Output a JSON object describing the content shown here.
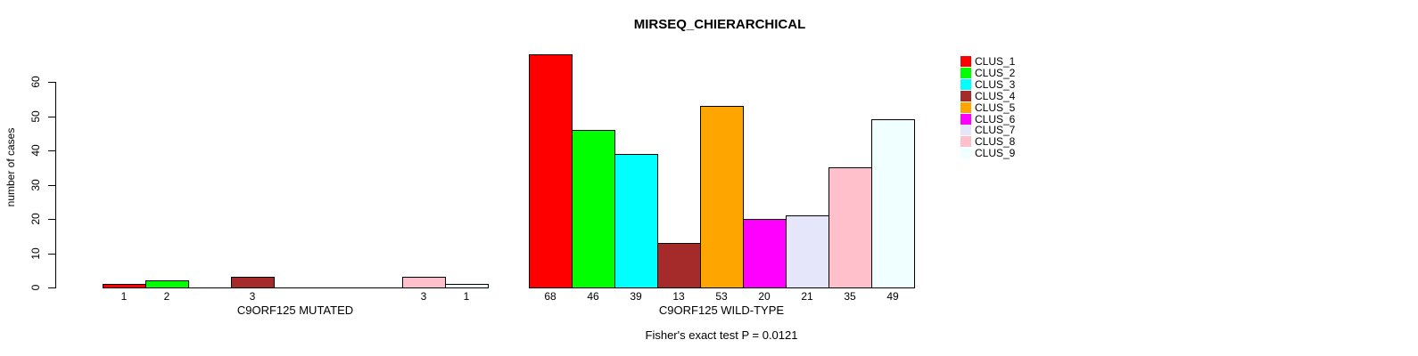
{
  "chart_data": {
    "type": "bar",
    "title": "MIRSEQ_CHIERARCHICAL",
    "ylabel": "number of cases",
    "ylim": [
      0,
      68
    ],
    "yticks": [
      0,
      10,
      20,
      30,
      40,
      50,
      60
    ],
    "grid": false,
    "legend_position": "top-right",
    "legend_items": [
      {
        "label": "CLUS_1",
        "color": "#FF0000"
      },
      {
        "label": "CLUS_2",
        "color": "#00FF00"
      },
      {
        "label": "CLUS_3",
        "color": "#00FFFF"
      },
      {
        "label": "CLUS_4",
        "color": "#A52A2A"
      },
      {
        "label": "CLUS_5",
        "color": "#FFA500"
      },
      {
        "label": "CLUS_6",
        "color": "#FF00FF"
      },
      {
        "label": "CLUS_7",
        "color": "#E6E6FA"
      },
      {
        "label": "CLUS_8",
        "color": "#FFC0CB"
      },
      {
        "label": "CLUS_9",
        "color": "#F0FFFF"
      }
    ],
    "groups": [
      {
        "xlabel": "C9ORF125 MUTATED",
        "values": [
          1,
          2,
          0,
          3,
          0,
          0,
          0,
          3,
          1
        ],
        "bar_labels": [
          "1",
          "2",
          "",
          "3",
          "",
          "",
          "",
          "3",
          "1"
        ]
      },
      {
        "xlabel": "C9ORF125 WILD-TYPE",
        "values": [
          68,
          46,
          39,
          13,
          53,
          20,
          21,
          35,
          49
        ],
        "bar_labels": [
          "68",
          "46",
          "39",
          "13",
          "53",
          "20",
          "21",
          "35",
          "49"
        ]
      }
    ],
    "annotation": "Fisher's exact test P = 0.0121"
  }
}
